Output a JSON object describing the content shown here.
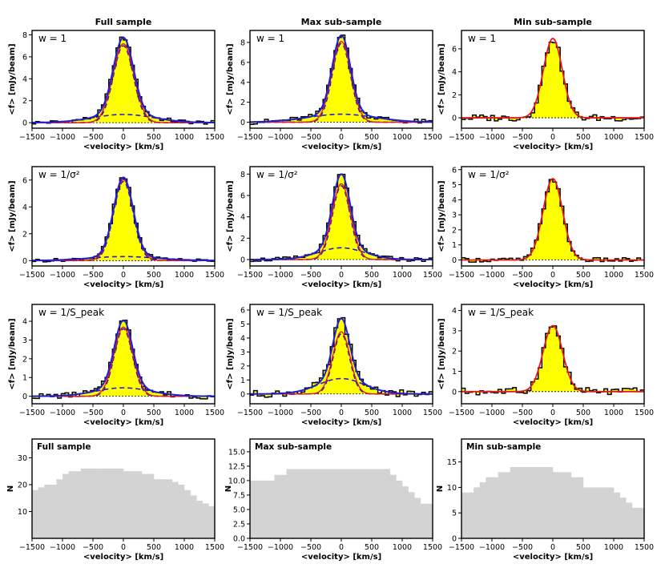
{
  "colors": {
    "fill": "#ffff00",
    "total_fit": "#1f1fd6",
    "component": "#1f1fd6",
    "single_fit": "#e31a1c",
    "hist_bar": "#d3d3d3",
    "axis": "#000000"
  },
  "column_titles": [
    "Full sample",
    "Max sub-sample",
    "Min sub-sample"
  ],
  "row_weights": [
    "w = 1",
    "w = 1/σ²",
    "w = 1/S_peak"
  ],
  "xlabel": "<velocity> [km/s]",
  "ylabel_flux": "<f> [mJy/beam]",
  "ylabel_count": "N",
  "chart_data": [
    {
      "type": "line",
      "title": "Full sample",
      "row_label": "w = 1",
      "fit": "double",
      "xlim": [
        -1500,
        1500
      ],
      "ylim": [
        -0.5,
        8.4
      ],
      "yticks": [
        0,
        2,
        4,
        6,
        8
      ],
      "xticks": [
        -1500,
        -1000,
        -500,
        0,
        500,
        1000,
        1500
      ],
      "narrow": {
        "amp": 7.0,
        "sigma": 165
      },
      "broad": {
        "amp": 0.75,
        "sigma": 500
      },
      "noise": 0.18,
      "xlabel": "<velocity> [km/s]",
      "ylabel": "<f> [mJy/beam]"
    },
    {
      "type": "line",
      "title": "Max sub-sample",
      "row_label": "w = 1",
      "fit": "double",
      "xlim": [
        -1500,
        1500
      ],
      "ylim": [
        -0.6,
        9.2
      ],
      "yticks": [
        0,
        2,
        4,
        6,
        8
      ],
      "xticks": [
        -1500,
        -1000,
        -500,
        0,
        500,
        1000,
        1500
      ],
      "narrow": {
        "amp": 7.9,
        "sigma": 150
      },
      "broad": {
        "amp": 0.8,
        "sigma": 550
      },
      "noise": 0.25,
      "xlabel": "<velocity> [km/s]",
      "ylabel": "<f> [mJy/beam]"
    },
    {
      "type": "line",
      "title": "Min sub-sample",
      "row_label": "w = 1",
      "fit": "single",
      "xlim": [
        -1500,
        1500
      ],
      "ylim": [
        -0.9,
        7.6
      ],
      "yticks": [
        0,
        2,
        4,
        6
      ],
      "xticks": [
        -1500,
        -1000,
        -500,
        0,
        500,
        1000,
        1500
      ],
      "narrow": {
        "amp": 6.9,
        "sigma": 155
      },
      "broad": {
        "amp": 0,
        "sigma": 500
      },
      "noise": 0.3,
      "xlabel": "<velocity> [km/s]",
      "ylabel": "<f> [mJy/beam]"
    },
    {
      "type": "line",
      "title": "Full sample",
      "row_label": "w = 1/σ²",
      "fit": "double",
      "xlim": [
        -1500,
        1500
      ],
      "ylim": [
        -0.4,
        7.0
      ],
      "yticks": [
        0,
        2,
        4,
        6
      ],
      "xticks": [
        -1500,
        -1000,
        -500,
        0,
        500,
        1000,
        1500
      ],
      "narrow": {
        "amp": 5.9,
        "sigma": 160
      },
      "broad": {
        "amp": 0.3,
        "sigma": 550
      },
      "noise": 0.12,
      "xlabel": "<velocity> [km/s]",
      "ylabel": "<f> [mJy/beam]"
    },
    {
      "type": "line",
      "title": "Max sub-sample",
      "row_label": "w = 1/σ²",
      "fit": "double",
      "xlim": [
        -1500,
        1500
      ],
      "ylim": [
        -0.6,
        8.7
      ],
      "yticks": [
        0,
        2,
        4,
        6,
        8
      ],
      "xticks": [
        -1500,
        -1000,
        -500,
        0,
        500,
        1000,
        1500
      ],
      "narrow": {
        "amp": 6.9,
        "sigma": 145
      },
      "broad": {
        "amp": 1.1,
        "sigma": 380
      },
      "noise": 0.2,
      "xlabel": "<velocity> [km/s]",
      "ylabel": "<f> [mJy/beam]"
    },
    {
      "type": "line",
      "title": "Min sub-sample",
      "row_label": "w = 1/σ²",
      "fit": "single",
      "xlim": [
        -1500,
        1500
      ],
      "ylim": [
        -0.4,
        6.2
      ],
      "yticks": [
        0,
        1,
        2,
        3,
        4,
        5,
        6
      ],
      "xticks": [
        -1500,
        -1000,
        -500,
        0,
        500,
        1000,
        1500
      ],
      "narrow": {
        "amp": 5.4,
        "sigma": 160
      },
      "broad": {
        "amp": 0,
        "sigma": 500
      },
      "noise": 0.15,
      "xlabel": "<velocity> [km/s]",
      "ylabel": "<f> [mJy/beam]"
    },
    {
      "type": "line",
      "title": "Full sample",
      "row_label": "w = 1/S_peak",
      "fit": "double",
      "xlim": [
        -1500,
        1500
      ],
      "ylim": [
        -0.4,
        4.9
      ],
      "yticks": [
        0,
        1,
        2,
        3,
        4
      ],
      "xticks": [
        -1500,
        -1000,
        -500,
        0,
        500,
        1000,
        1500
      ],
      "narrow": {
        "amp": 3.6,
        "sigma": 150
      },
      "broad": {
        "amp": 0.45,
        "sigma": 450
      },
      "noise": 0.15,
      "xlabel": "<velocity> [km/s]",
      "ylabel": "<f> [mJy/beam]"
    },
    {
      "type": "line",
      "title": "Max sub-sample",
      "row_label": "w = 1/S_peak",
      "fit": "double",
      "xlim": [
        -1500,
        1500
      ],
      "ylim": [
        -0.7,
        6.4
      ],
      "yticks": [
        0,
        1,
        2,
        3,
        4,
        5,
        6
      ],
      "xticks": [
        -1500,
        -1000,
        -500,
        0,
        500,
        1000,
        1500
      ],
      "narrow": {
        "amp": 4.3,
        "sigma": 135
      },
      "broad": {
        "amp": 1.1,
        "sigma": 380
      },
      "noise": 0.25,
      "xlabel": "<velocity> [km/s]",
      "ylabel": "<f> [mJy/beam]"
    },
    {
      "type": "line",
      "title": "Min sub-sample",
      "row_label": "w = 1/S_peak",
      "fit": "single",
      "xlim": [
        -1500,
        1500
      ],
      "ylim": [
        -0.6,
        4.3
      ],
      "yticks": [
        0,
        1,
        2,
        3,
        4
      ],
      "xticks": [
        -1500,
        -1000,
        -500,
        0,
        500,
        1000,
        1500
      ],
      "narrow": {
        "amp": 3.25,
        "sigma": 160
      },
      "broad": {
        "amp": 0,
        "sigma": 500
      },
      "noise": 0.2,
      "xlabel": "<velocity> [km/s]",
      "ylabel": "<f> [mJy/beam]"
    },
    {
      "type": "bar",
      "title": "Full sample",
      "xlim": [
        -1500,
        1500
      ],
      "ylim": [
        0,
        37
      ],
      "yticks": [
        10,
        20,
        30
      ],
      "xticks": [
        -1500,
        -1000,
        -500,
        0,
        500,
        1000,
        1500
      ],
      "x": [
        -1500,
        -1400,
        -1300,
        -1200,
        -1100,
        -1000,
        -900,
        -800,
        -700,
        -600,
        -500,
        -400,
        -300,
        -200,
        -100,
        0,
        100,
        200,
        300,
        400,
        500,
        600,
        700,
        800,
        900,
        1000,
        1100,
        1200,
        1300,
        1400
      ],
      "values": [
        18,
        19,
        20,
        20,
        22,
        24,
        25,
        25,
        26,
        26,
        26,
        26,
        26,
        26,
        26,
        25,
        25,
        25,
        24,
        24,
        22,
        22,
        22,
        21,
        20,
        18,
        16,
        14,
        13,
        12
      ],
      "xlabel": "<velocity> [km/s]",
      "ylabel": "N"
    },
    {
      "type": "bar",
      "title": "Max sub-sample",
      "xlim": [
        -1500,
        1500
      ],
      "ylim": [
        0,
        17.2
      ],
      "yticks": [
        0.0,
        2.5,
        5.0,
        7.5,
        10.0,
        12.5,
        15.0
      ],
      "xticks": [
        -1500,
        -1000,
        -500,
        0,
        500,
        1000,
        1500
      ],
      "x": [
        -1500,
        -1400,
        -1300,
        -1200,
        -1100,
        -1000,
        -900,
        -800,
        -700,
        -600,
        -500,
        -400,
        -300,
        -200,
        -100,
        0,
        100,
        200,
        300,
        400,
        500,
        600,
        700,
        800,
        900,
        1000,
        1100,
        1200,
        1300,
        1400
      ],
      "values": [
        10,
        10,
        10,
        10,
        11,
        11,
        12,
        12,
        12,
        12,
        12,
        12,
        12,
        12,
        12,
        12,
        12,
        12,
        12,
        12,
        12,
        12,
        12,
        11,
        10,
        9,
        8,
        7,
        6,
        6
      ],
      "xlabel": "<velocity> [km/s]",
      "ylabel": "N"
    },
    {
      "type": "bar",
      "title": "Min sub-sample",
      "xlim": [
        -1500,
        1500
      ],
      "ylim": [
        0,
        19.5
      ],
      "yticks": [
        0,
        5,
        10,
        15
      ],
      "xticks": [
        -1500,
        -1000,
        -500,
        0,
        500,
        1000,
        1500
      ],
      "x": [
        -1500,
        -1400,
        -1300,
        -1200,
        -1100,
        -1000,
        -900,
        -800,
        -700,
        -600,
        -500,
        -400,
        -300,
        -200,
        -100,
        0,
        100,
        200,
        300,
        400,
        500,
        600,
        700,
        800,
        900,
        1000,
        1100,
        1200,
        1300,
        1400
      ],
      "values": [
        9,
        9,
        10,
        11,
        12,
        12,
        13,
        13,
        14,
        14,
        14,
        14,
        14,
        14,
        14,
        13,
        13,
        13,
        12,
        12,
        10,
        10,
        10,
        10,
        10,
        9,
        8,
        7,
        6,
        6
      ],
      "xlabel": "<velocity> [km/s]",
      "ylabel": "N"
    }
  ]
}
